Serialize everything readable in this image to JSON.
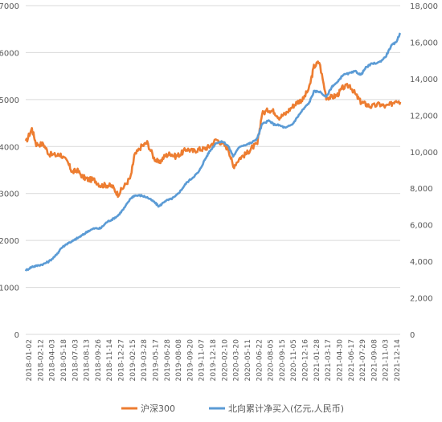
{
  "chart_data": {
    "type": "line",
    "x_tick_labels": [
      "2018-01-02",
      "2018-02-12",
      "2018-04-03",
      "2018-05-18",
      "2018-07-03",
      "2018-08-13",
      "2018-09-26",
      "2018-11-14",
      "2018-12-27",
      "2019-02-15",
      "2019-03-28",
      "2019-05-17",
      "2019-06-28",
      "2019-08-08",
      "2019-09-20",
      "2019-11-07",
      "2019-12-18",
      "2020-02-10",
      "2020-03-20",
      "2020-05-11",
      "2020-06-22",
      "2020-08-05",
      "2020-09-15",
      "2020-11-05",
      "2020-12-16",
      "2021-01-28",
      "2021-03-17",
      "2021-04-30",
      "2021-06-17",
      "2021-07-29",
      "2021-09-08",
      "2021-11-03",
      "2021-12-14"
    ],
    "y_left": {
      "min": 0,
      "max": 7000,
      "ticks": [
        0,
        1000,
        2000,
        3000,
        4000,
        5000,
        6000,
        7000
      ]
    },
    "y_right": {
      "min": 0,
      "max": 18000,
      "ticks": [
        "0",
        "2,000",
        "4,000",
        "6,000",
        "8,000",
        "10,000",
        "12,000",
        "14,000",
        "16,000",
        "18,000"
      ],
      "tick_values": [
        0,
        2000,
        4000,
        6000,
        8000,
        10000,
        12000,
        14000,
        16000,
        18000
      ]
    },
    "grid": true,
    "legend_position": "bottom",
    "series": [
      {
        "name": "沪深300",
        "axis": "left",
        "color": "#ED7D31",
        "x": [
          "2018-01-02",
          "2018-01-26",
          "2018-02-12",
          "2018-03-12",
          "2018-04-03",
          "2018-05-02",
          "2018-05-18",
          "2018-06-15",
          "2018-07-03",
          "2018-07-20",
          "2018-08-13",
          "2018-09-01",
          "2018-09-26",
          "2018-10-20",
          "2018-11-14",
          "2018-12-05",
          "2018-12-27",
          "2019-01-20",
          "2019-02-15",
          "2019-03-01",
          "2019-03-28",
          "2019-04-20",
          "2019-05-17",
          "2019-06-05",
          "2019-06-28",
          "2019-07-20",
          "2019-08-08",
          "2019-08-30",
          "2019-09-20",
          "2019-10-15",
          "2019-11-07",
          "2019-11-28",
          "2019-12-18",
          "2020-01-14",
          "2020-02-10",
          "2020-03-01",
          "2020-03-20",
          "2020-04-15",
          "2020-05-11",
          "2020-06-01",
          "2020-06-22",
          "2020-07-10",
          "2020-08-05",
          "2020-08-25",
          "2020-09-15",
          "2020-10-10",
          "2020-11-05",
          "2020-11-25",
          "2020-12-16",
          "2021-01-10",
          "2021-01-28",
          "2021-02-18",
          "2021-03-17",
          "2021-04-10",
          "2021-04-30",
          "2021-05-20",
          "2021-06-17",
          "2021-07-10",
          "2021-07-29",
          "2021-08-18",
          "2021-09-08",
          "2021-10-10",
          "2021-11-03",
          "2021-11-25",
          "2021-12-14",
          "2021-12-30"
        ],
        "values": [
          4080,
          4380,
          4050,
          4050,
          3840,
          3810,
          3830,
          3650,
          3450,
          3500,
          3350,
          3300,
          3290,
          3170,
          3180,
          3150,
          2980,
          3150,
          3350,
          3800,
          4000,
          4080,
          3750,
          3650,
          3800,
          3850,
          3790,
          3850,
          3950,
          3900,
          3940,
          3950,
          4000,
          4150,
          4050,
          3950,
          3570,
          3760,
          3850,
          3980,
          4050,
          4700,
          4780,
          4750,
          4620,
          4700,
          4850,
          4950,
          5000,
          5250,
          5700,
          5800,
          5050,
          5050,
          5100,
          5250,
          5300,
          5100,
          4950,
          4900,
          4850,
          4900,
          4850,
          4900,
          5000,
          4950
        ]
      },
      {
        "name": "北向累计净买入(亿元,人民币)",
        "axis": "right",
        "color": "#5B9BD5",
        "x": [
          "2018-01-02",
          "2018-01-26",
          "2018-02-12",
          "2018-03-12",
          "2018-04-03",
          "2018-05-02",
          "2018-05-18",
          "2018-06-15",
          "2018-07-03",
          "2018-07-20",
          "2018-08-13",
          "2018-09-01",
          "2018-09-26",
          "2018-10-20",
          "2018-11-14",
          "2018-12-05",
          "2018-12-27",
          "2019-01-20",
          "2019-02-15",
          "2019-03-01",
          "2019-03-28",
          "2019-04-20",
          "2019-05-17",
          "2019-06-05",
          "2019-06-28",
          "2019-07-20",
          "2019-08-08",
          "2019-08-30",
          "2019-09-20",
          "2019-10-15",
          "2019-11-07",
          "2019-11-28",
          "2019-12-18",
          "2020-01-14",
          "2020-02-10",
          "2020-03-01",
          "2020-03-20",
          "2020-04-15",
          "2020-05-11",
          "2020-06-01",
          "2020-06-22",
          "2020-07-10",
          "2020-08-05",
          "2020-08-25",
          "2020-09-15",
          "2020-10-10",
          "2020-11-05",
          "2020-11-25",
          "2020-12-16",
          "2021-01-10",
          "2021-01-28",
          "2021-02-18",
          "2021-03-17",
          "2021-04-10",
          "2021-04-30",
          "2021-05-20",
          "2021-06-17",
          "2021-07-10",
          "2021-07-29",
          "2021-08-18",
          "2021-09-08",
          "2021-10-10",
          "2021-11-03",
          "2021-11-25",
          "2021-12-14",
          "2021-12-30"
        ],
        "values": [
          3500,
          3700,
          3750,
          3850,
          4000,
          4350,
          4700,
          5000,
          5100,
          5250,
          5450,
          5650,
          5800,
          5800,
          6150,
          6300,
          6500,
          6900,
          7450,
          7600,
          7600,
          7500,
          7250,
          7000,
          7300,
          7400,
          7550,
          7900,
          8300,
          8600,
          8900,
          9500,
          10000,
          10500,
          10550,
          10300,
          9750,
          10300,
          10400,
          10500,
          10750,
          11500,
          11700,
          11500,
          11450,
          11300,
          11500,
          11900,
          12300,
          12700,
          13300,
          13300,
          13000,
          13600,
          13800,
          14200,
          14300,
          14400,
          14200,
          14600,
          14800,
          14900,
          15200,
          15800,
          16000,
          16500
        ]
      }
    ]
  }
}
